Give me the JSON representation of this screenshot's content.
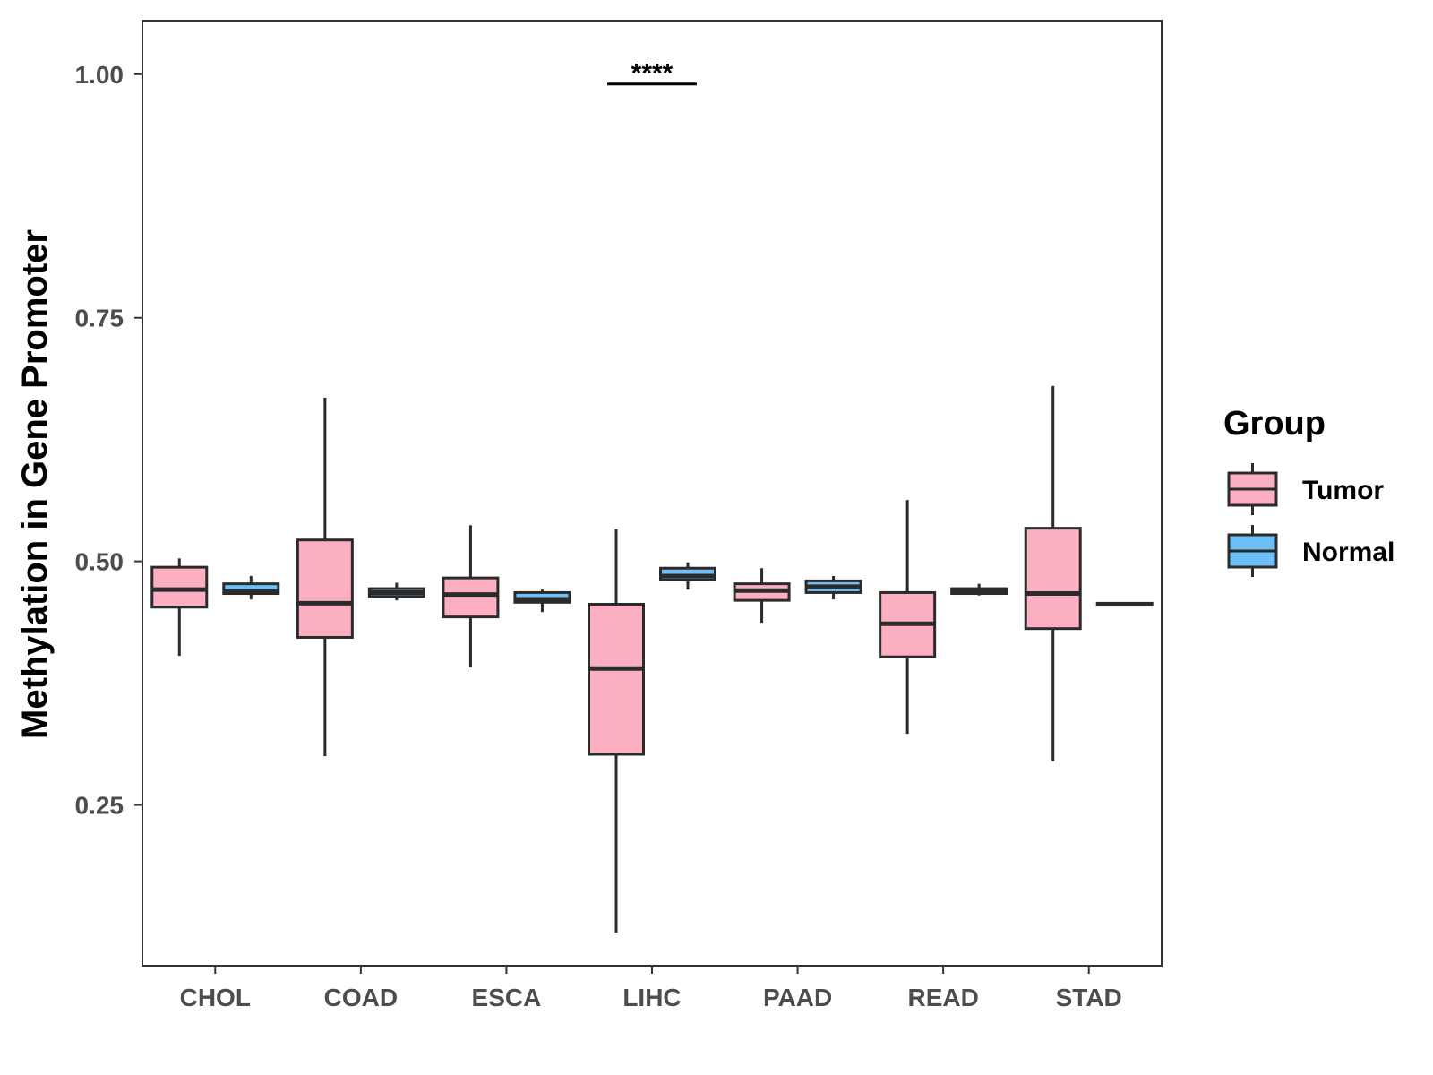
{
  "chart_data": {
    "type": "boxplot",
    "title": "",
    "xlabel": "",
    "ylabel": "Methylation in Gene Promoter",
    "ylim": [
      0.085,
      1.055
    ],
    "yticks": [
      0.25,
      0.5,
      0.75,
      1.0
    ],
    "ytick_labels": [
      "0.25",
      "0.50",
      "0.75",
      "1.00"
    ],
    "categories": [
      "CHOL",
      "COAD",
      "ESCA",
      "LIHC",
      "PAAD",
      "READ",
      "STAD"
    ],
    "legend": {
      "title": "Group",
      "position": "right",
      "entries": [
        {
          "name": "Tumor",
          "color": "#FBAFC0"
        },
        {
          "name": "Normal",
          "color": "#6DBFF7"
        }
      ]
    },
    "series": [
      {
        "name": "Tumor",
        "color": "#FBAFC0",
        "boxes": [
          {
            "category": "CHOL",
            "min": 0.403,
            "q1": 0.453,
            "median": 0.471,
            "q3": 0.494,
            "max": 0.503
          },
          {
            "category": "COAD",
            "min": 0.3,
            "q1": 0.422,
            "median": 0.457,
            "q3": 0.522,
            "max": 0.668
          },
          {
            "category": "ESCA",
            "min": 0.391,
            "q1": 0.443,
            "median": 0.466,
            "q3": 0.483,
            "max": 0.537
          },
          {
            "category": "LIHC",
            "min": 0.119,
            "q1": 0.302,
            "median": 0.39,
            "q3": 0.456,
            "max": 0.533
          },
          {
            "category": "PAAD",
            "min": 0.437,
            "q1": 0.46,
            "median": 0.47,
            "q3": 0.477,
            "max": 0.493
          },
          {
            "category": "READ",
            "min": 0.323,
            "q1": 0.402,
            "median": 0.436,
            "q3": 0.468,
            "max": 0.563
          },
          {
            "category": "STAD",
            "min": 0.295,
            "q1": 0.431,
            "median": 0.467,
            "q3": 0.534,
            "max": 0.68
          }
        ]
      },
      {
        "name": "Normal",
        "color": "#6DBFF7",
        "boxes": [
          {
            "category": "CHOL",
            "min": 0.461,
            "q1": 0.467,
            "median": 0.469,
            "q3": 0.477,
            "max": 0.485
          },
          {
            "category": "COAD",
            "min": 0.46,
            "q1": 0.464,
            "median": 0.468,
            "q3": 0.472,
            "max": 0.478
          },
          {
            "category": "ESCA",
            "min": 0.448,
            "q1": 0.458,
            "median": 0.461,
            "q3": 0.468,
            "max": 0.471
          },
          {
            "category": "LIHC",
            "min": 0.471,
            "q1": 0.481,
            "median": 0.485,
            "q3": 0.493,
            "max": 0.499
          },
          {
            "category": "PAAD",
            "min": 0.461,
            "q1": 0.468,
            "median": 0.474,
            "q3": 0.48,
            "max": 0.485
          },
          {
            "category": "READ",
            "min": 0.465,
            "q1": 0.467,
            "median": 0.469,
            "q3": 0.472,
            "max": 0.477
          },
          {
            "category": "STAD",
            "min": 0.455,
            "q1": 0.455,
            "median": 0.456,
            "q3": 0.457,
            "max": 0.457
          }
        ]
      }
    ],
    "annotations": [
      {
        "category": "LIHC",
        "label": "****",
        "y": 0.99
      }
    ]
  }
}
